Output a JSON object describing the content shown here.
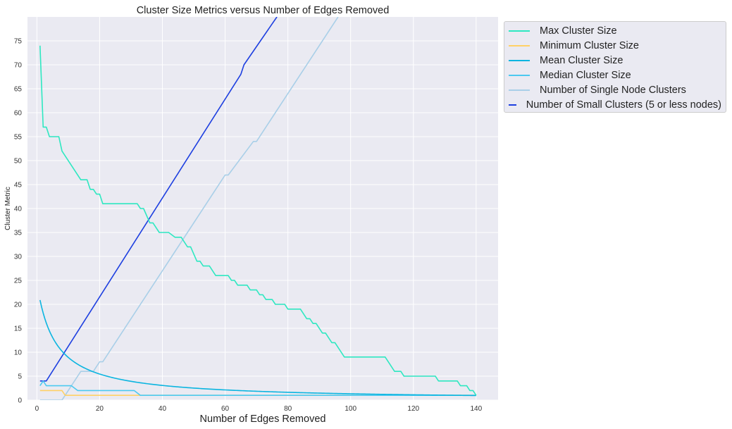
{
  "chart_data": {
    "type": "line",
    "title": "Cluster Size Metrics versus Number of Edges Removed",
    "xlabel": "Number of Edges Removed",
    "ylabel": "Cluster Metric",
    "xlim": [
      -3,
      147
    ],
    "ylim": [
      0,
      80
    ],
    "xticks": [
      0,
      20,
      40,
      60,
      80,
      100,
      120,
      140
    ],
    "yticks": [
      0,
      5,
      10,
      15,
      20,
      25,
      30,
      35,
      40,
      45,
      50,
      55,
      60,
      65,
      70,
      75
    ],
    "grid": true,
    "legend_position": "outside-top-right",
    "background": "#eaeaf2",
    "series": [
      {
        "name": "Max Cluster Size",
        "color": "#2ee8c1",
        "step": true,
        "points": [
          [
            1,
            74
          ],
          [
            2,
            57
          ],
          [
            3,
            57
          ],
          [
            4,
            55
          ],
          [
            7,
            55
          ],
          [
            8,
            52
          ],
          [
            14,
            46
          ],
          [
            16,
            46
          ],
          [
            17,
            44
          ],
          [
            18,
            44
          ],
          [
            19,
            43
          ],
          [
            20,
            43
          ],
          [
            21,
            41
          ],
          [
            32,
            41
          ],
          [
            33,
            40
          ],
          [
            34,
            40
          ],
          [
            36,
            37
          ],
          [
            37,
            37
          ],
          [
            39,
            35
          ],
          [
            42,
            35
          ],
          [
            44,
            34
          ],
          [
            46,
            34
          ],
          [
            48,
            32
          ],
          [
            49,
            32
          ],
          [
            51,
            29
          ],
          [
            52,
            29
          ],
          [
            53,
            28
          ],
          [
            55,
            28
          ],
          [
            57,
            26
          ],
          [
            61,
            26
          ],
          [
            62,
            25
          ],
          [
            63,
            25
          ],
          [
            64,
            24
          ],
          [
            67,
            24
          ],
          [
            68,
            23
          ],
          [
            70,
            23
          ],
          [
            71,
            22
          ],
          [
            72,
            22
          ],
          [
            73,
            21
          ],
          [
            75,
            21
          ],
          [
            76,
            20
          ],
          [
            79,
            20
          ],
          [
            80,
            19
          ],
          [
            84,
            19
          ],
          [
            86,
            17
          ],
          [
            87,
            17
          ],
          [
            88,
            16
          ],
          [
            89,
            16
          ],
          [
            91,
            14
          ],
          [
            92,
            14
          ],
          [
            94,
            12
          ],
          [
            95,
            12
          ],
          [
            98,
            9
          ],
          [
            111,
            9
          ],
          [
            114,
            6
          ],
          [
            116,
            6
          ],
          [
            117,
            5
          ],
          [
            127,
            5
          ],
          [
            128,
            4
          ],
          [
            134,
            4
          ],
          [
            135,
            3
          ],
          [
            137,
            3
          ],
          [
            138,
            2
          ],
          [
            139,
            2
          ],
          [
            140,
            1
          ]
        ]
      },
      {
        "name": "Minimum Cluster Size",
        "color": "#ffd166",
        "step": true,
        "points": [
          [
            1,
            2
          ],
          [
            8,
            2
          ],
          [
            9,
            1
          ],
          [
            140,
            1
          ]
        ]
      },
      {
        "name": "Mean Cluster Size",
        "color": "#0bb5e0",
        "function": "mean_cluster_size",
        "x_range": [
          1,
          140
        ]
      },
      {
        "name": "Median Cluster Size",
        "color": "#4cc9f0",
        "step": true,
        "points": [
          [
            1,
            3
          ],
          [
            2,
            4
          ],
          [
            3,
            3
          ],
          [
            11,
            3
          ],
          [
            13,
            2
          ],
          [
            31,
            2
          ],
          [
            33,
            1
          ],
          [
            140,
            1
          ]
        ]
      },
      {
        "name": "Number of Single Node Clusters",
        "color": "#a9cfe8",
        "step": false,
        "points": [
          [
            1,
            0
          ],
          [
            8,
            0
          ],
          [
            14,
            6
          ],
          [
            18,
            6
          ],
          [
            20,
            8
          ],
          [
            21,
            8
          ],
          [
            60,
            47
          ],
          [
            61,
            47
          ],
          [
            69,
            54
          ],
          [
            70,
            54
          ],
          [
            96,
            80
          ]
        ]
      },
      {
        "name": "Number of Small Clusters (5 or less nodes)",
        "color": "#1d3fe0",
        "step": false,
        "points": [
          [
            1,
            4
          ],
          [
            2,
            4
          ],
          [
            3,
            4
          ],
          [
            65,
            68
          ],
          [
            66,
            70
          ],
          [
            76.5,
            80
          ]
        ]
      }
    ]
  }
}
